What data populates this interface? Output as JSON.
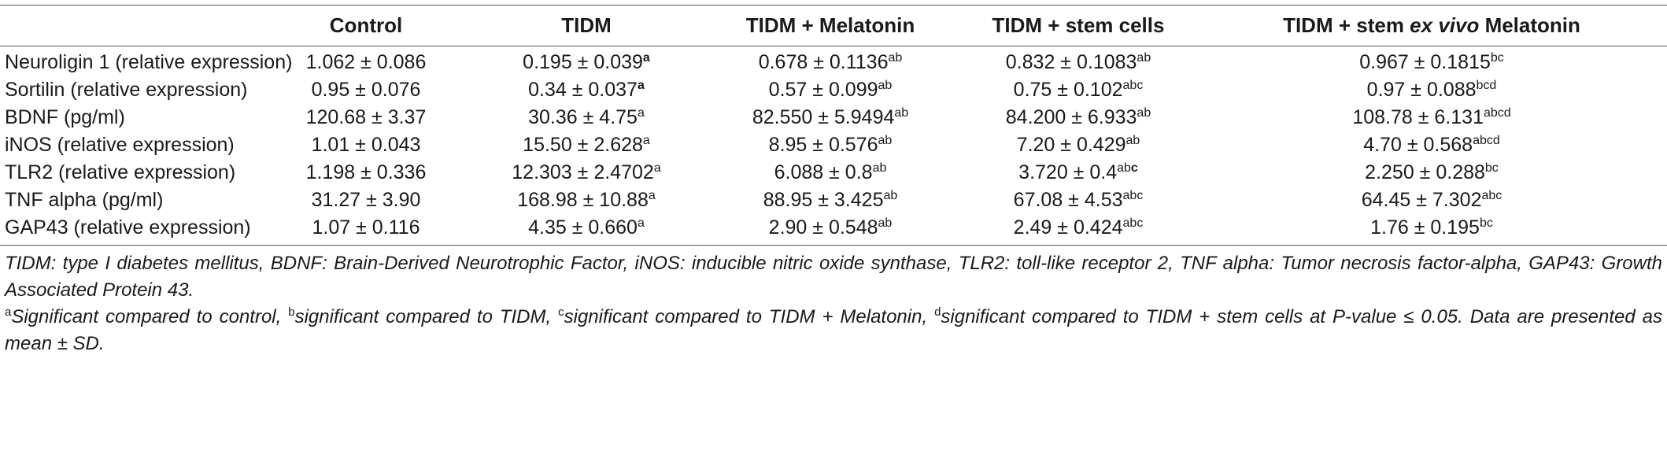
{
  "columns": [
    {
      "text": "",
      "pre": "",
      "ital": "",
      "post": ""
    },
    {
      "pre": "Control",
      "ital": "",
      "post": ""
    },
    {
      "pre": "TIDM",
      "ital": "",
      "post": ""
    },
    {
      "pre": "TIDM + Melatonin",
      "ital": "",
      "post": ""
    },
    {
      "pre": "TIDM + stem cells",
      "ital": "",
      "post": ""
    },
    {
      "pre": "TIDM + stem ",
      "ital": "ex vivo",
      "post": " Melatonin"
    }
  ],
  "rows": [
    {
      "label": "Neuroligin 1 (relative expression)",
      "cells": [
        {
          "value": "1.062 ± 0.086",
          "sup": "",
          "bold": ""
        },
        {
          "value": "0.195 ± 0.039",
          "sup": "",
          "bold": "a"
        },
        {
          "value": "0.678 ± 0.1136",
          "sup": "ab",
          "bold": ""
        },
        {
          "value": "0.832 ± 0.1083",
          "sup": "ab",
          "bold": ""
        },
        {
          "value": "0.967 ± 0.1815",
          "sup": "bc",
          "bold": ""
        }
      ]
    },
    {
      "label": "Sortilin (relative expression)",
      "cells": [
        {
          "value": "0.95 ± 0.076",
          "sup": "",
          "bold": ""
        },
        {
          "value": "0.34 ± 0.037",
          "sup": "",
          "bold": "a"
        },
        {
          "value": "0.57 ± 0.099",
          "sup": "ab",
          "bold": ""
        },
        {
          "value": "0.75 ± 0.102",
          "sup": "abc",
          "bold": ""
        },
        {
          "value": "0.97 ± 0.088",
          "sup": "bcd",
          "bold": ""
        }
      ]
    },
    {
      "label": "BDNF (pg/ml)",
      "cells": [
        {
          "value": "120.68 ± 3.37",
          "sup": "",
          "bold": ""
        },
        {
          "value": "30.36 ± 4.75",
          "sup": "a",
          "bold": ""
        },
        {
          "value": "82.550 ± 5.9494",
          "sup": "ab",
          "bold": ""
        },
        {
          "value": "84.200 ± 6.933",
          "sup": "ab",
          "bold": ""
        },
        {
          "value": "108.78 ± 6.131",
          "sup": "abcd",
          "bold": ""
        }
      ]
    },
    {
      "label": "iNOS (relative expression)",
      "cells": [
        {
          "value": "1.01 ± 0.043",
          "sup": "",
          "bold": ""
        },
        {
          "value": "15.50 ± 2.628",
          "sup": "a",
          "bold": ""
        },
        {
          "value": "8.95 ± 0.576",
          "sup": "ab",
          "bold": ""
        },
        {
          "value": "7.20 ± 0.429",
          "sup": "ab",
          "bold": ""
        },
        {
          "value": "4.70 ± 0.568",
          "sup": "abcd",
          "bold": ""
        }
      ]
    },
    {
      "label": "TLR2 (relative expression)",
      "cells": [
        {
          "value": "1.198 ± 0.336",
          "sup": "",
          "bold": ""
        },
        {
          "value": "12.303 ± 2.4702",
          "sup": "a",
          "bold": ""
        },
        {
          "value": "6.088 ± 0.8",
          "sup": "ab",
          "bold": ""
        },
        {
          "value": "3.720 ± 0.4",
          "sup": "ab",
          "bold": "c"
        },
        {
          "value": "2.250 ± 0.288",
          "sup": "bc",
          "bold": ""
        }
      ]
    },
    {
      "label": "TNF alpha (pg/ml)",
      "cells": [
        {
          "value": "31.27 ± 3.90",
          "sup": "",
          "bold": ""
        },
        {
          "value": "168.98 ± 10.88",
          "sup": "a",
          "bold": ""
        },
        {
          "value": "88.95 ± 3.425",
          "sup": "ab",
          "bold": ""
        },
        {
          "value": "67.08 ± 4.53",
          "sup": "abc",
          "bold": ""
        },
        {
          "value": "64.45 ± 7.302",
          "sup": "abc",
          "bold": ""
        }
      ]
    },
    {
      "label": "GAP43 (relative expression)",
      "cells": [
        {
          "value": "1.07 ± 0.116",
          "sup": "",
          "bold": ""
        },
        {
          "value": "4.35 ± 0.660",
          "sup": "a",
          "bold": ""
        },
        {
          "value": "2.90 ± 0.548",
          "sup": "ab",
          "bold": ""
        },
        {
          "value": "2.49 ± 0.424",
          "sup": "abc",
          "bold": ""
        },
        {
          "value": "1.76 ± 0.195",
          "sup": "bc",
          "bold": ""
        }
      ]
    }
  ],
  "footnotes": {
    "abbreviations": "TIDM: type I diabetes mellitus, BDNF: Brain-Derived Neurotrophic Factor, iNOS: inducible nitric oxide synthase, TLR2: toll-like receptor 2, TNF alpha: Tumor necrosis factor-alpha, GAP43: Growth Associated Protein 43.",
    "significance": [
      {
        "mark": "a",
        "text": "Significant compared to control, "
      },
      {
        "mark": "b",
        "text": "significant compared to TIDM, "
      },
      {
        "mark": "c",
        "text": "significant compared to TIDM + Melatonin, "
      },
      {
        "mark": "d",
        "text": "significant compared to TIDM + stem cells at P-value ≤ 0.05. Data are presented as mean ± SD."
      }
    ]
  }
}
